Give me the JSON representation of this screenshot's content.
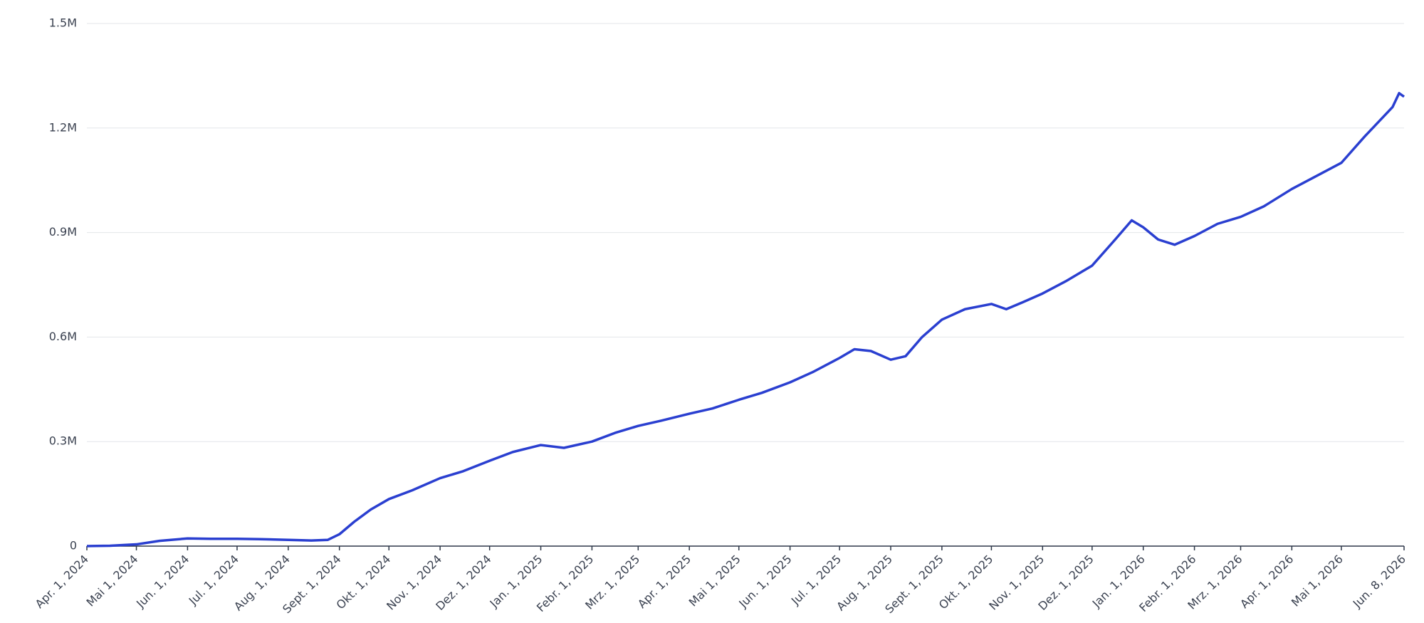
{
  "chart_data": {
    "type": "line",
    "x": [
      "2024-04-01",
      "2024-04-15",
      "2024-05-01",
      "2024-05-15",
      "2024-06-01",
      "2024-06-15",
      "2024-07-01",
      "2024-07-15",
      "2024-08-01",
      "2024-08-15",
      "2024-08-25",
      "2024-09-01",
      "2024-09-10",
      "2024-09-20",
      "2024-10-01",
      "2024-10-15",
      "2024-11-01",
      "2024-11-15",
      "2024-12-01",
      "2024-12-15",
      "2025-01-01",
      "2025-01-15",
      "2025-02-01",
      "2025-02-15",
      "2025-03-01",
      "2025-03-15",
      "2025-04-01",
      "2025-04-15",
      "2025-05-01",
      "2025-05-15",
      "2025-06-01",
      "2025-06-15",
      "2025-07-01",
      "2025-07-10",
      "2025-07-20",
      "2025-08-01",
      "2025-08-10",
      "2025-08-20",
      "2025-09-01",
      "2025-09-15",
      "2025-10-01",
      "2025-10-10",
      "2025-10-20",
      "2025-11-01",
      "2025-11-15",
      "2025-12-01",
      "2025-12-15",
      "2025-12-25",
      "2026-01-01",
      "2026-01-10",
      "2026-01-20",
      "2026-02-01",
      "2026-02-15",
      "2026-03-01",
      "2026-03-15",
      "2026-04-01",
      "2026-04-15",
      "2026-05-01",
      "2026-05-15",
      "2026-06-01",
      "2026-06-05",
      "2026-06-08"
    ],
    "series": [
      {
        "color": "#2a3fd0",
        "values": [
          0,
          1000,
          5000,
          15000,
          22000,
          21000,
          21000,
          20000,
          18000,
          16000,
          18000,
          34000,
          70000,
          105000,
          135000,
          160000,
          195000,
          215000,
          245000,
          270000,
          290000,
          282000,
          300000,
          325000,
          345000,
          360000,
          380000,
          395000,
          420000,
          440000,
          470000,
          500000,
          540000,
          565000,
          560000,
          535000,
          545000,
          600000,
          650000,
          680000,
          695000,
          680000,
          700000,
          725000,
          760000,
          805000,
          880000,
          935000,
          915000,
          880000,
          865000,
          890000,
          925000,
          945000,
          975000,
          1025000,
          1060000,
          1100000,
          1175000,
          1260000,
          1300000,
          1290000
        ]
      }
    ],
    "xlim": [
      "2024-04-01",
      "2026-06-08"
    ],
    "xticks": [
      {
        "value": "2024-04-01",
        "label": "Apr. 1, 2024"
      },
      {
        "value": "2024-05-01",
        "label": "Mai 1, 2024"
      },
      {
        "value": "2024-06-01",
        "label": "Jun. 1, 2024"
      },
      {
        "value": "2024-07-01",
        "label": "Jul. 1, 2024"
      },
      {
        "value": "2024-08-01",
        "label": "Aug. 1, 2024"
      },
      {
        "value": "2024-09-01",
        "label": "Sept. 1, 2024"
      },
      {
        "value": "2024-10-01",
        "label": "Okt. 1, 2024"
      },
      {
        "value": "2024-11-01",
        "label": "Nov. 1, 2024"
      },
      {
        "value": "2024-12-01",
        "label": "Dez. 1, 2024"
      },
      {
        "value": "2025-01-01",
        "label": "Jan. 1, 2025"
      },
      {
        "value": "2025-02-01",
        "label": "Febr. 1, 2025"
      },
      {
        "value": "2025-03-01",
        "label": "Mrz. 1, 2025"
      },
      {
        "value": "2025-04-01",
        "label": "Apr. 1, 2025"
      },
      {
        "value": "2025-05-01",
        "label": "Mai 1, 2025"
      },
      {
        "value": "2025-06-01",
        "label": "Jun. 1, 2025"
      },
      {
        "value": "2025-07-01",
        "label": "Jul. 1, 2025"
      },
      {
        "value": "2025-08-01",
        "label": "Aug. 1, 2025"
      },
      {
        "value": "2025-09-01",
        "label": "Sept. 1, 2025"
      },
      {
        "value": "2025-10-01",
        "label": "Okt. 1, 2025"
      },
      {
        "value": "2025-11-01",
        "label": "Nov. 1, 2025"
      },
      {
        "value": "2025-12-01",
        "label": "Dez. 1, 2025"
      },
      {
        "value": "2026-01-01",
        "label": "Jan. 1, 2026"
      },
      {
        "value": "2026-02-01",
        "label": "Febr. 1, 2026"
      },
      {
        "value": "2026-03-01",
        "label": "Mrz. 1, 2026"
      },
      {
        "value": "2026-04-01",
        "label": "Apr. 1, 2026"
      },
      {
        "value": "2026-05-01",
        "label": "Mai 1, 2026"
      },
      {
        "value": "2026-06-08",
        "label": "Jun. 8, 2026"
      }
    ],
    "ylim": [
      0,
      1500000
    ],
    "yticks": [
      0,
      {
        "value": 300000,
        "label": "0.3M"
      },
      {
        "value": 600000,
        "label": "0.6M"
      },
      {
        "value": 900000,
        "label": "0.9M"
      },
      {
        "value": 1200000,
        "label": "1.2M"
      },
      {
        "value": 1500000,
        "label": "1.5M"
      }
    ],
    "grid": true
  }
}
